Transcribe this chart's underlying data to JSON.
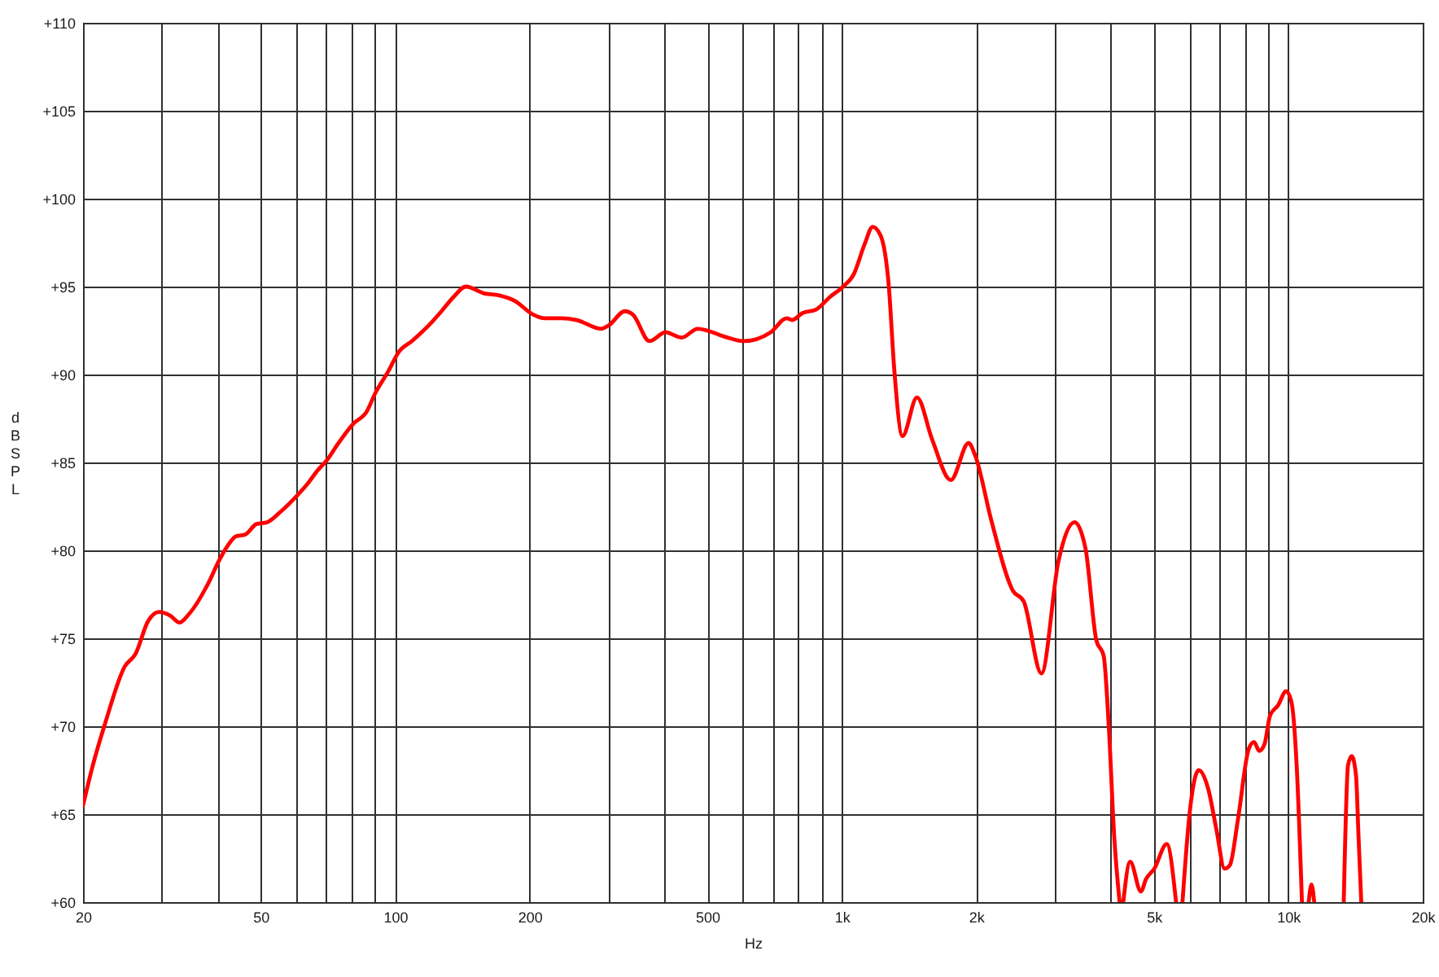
{
  "chart_data": {
    "type": "line",
    "xlabel": "Hz",
    "ylabel": "dB SPL",
    "log": "x",
    "grid": true,
    "line_style": "solid",
    "xlim": [
      20,
      20000
    ],
    "ylim": [
      60,
      110
    ],
    "xticks": [
      20,
      {
        "value": 30,
        "label": null
      },
      {
        "value": 40,
        "label": null
      },
      50,
      {
        "value": 60,
        "label": null
      },
      {
        "value": 70,
        "label": null
      },
      {
        "value": 80,
        "label": null
      },
      {
        "value": 90,
        "label": null
      },
      100,
      200,
      {
        "value": 300,
        "label": null
      },
      {
        "value": 400,
        "label": null
      },
      500,
      {
        "value": 600,
        "label": null
      },
      {
        "value": 700,
        "label": null
      },
      {
        "value": 800,
        "label": null
      },
      {
        "value": 900,
        "label": null
      },
      {
        "value": 1000,
        "label": "1k"
      },
      {
        "value": 2000,
        "label": "2k"
      },
      {
        "value": 3000,
        "label": null
      },
      {
        "value": 4000,
        "label": null
      },
      {
        "value": 5000,
        "label": "5k"
      },
      {
        "value": 6000,
        "label": null
      },
      {
        "value": 7000,
        "label": null
      },
      {
        "value": 8000,
        "label": null
      },
      {
        "value": 9000,
        "label": null
      },
      {
        "value": 10000,
        "label": "10k"
      },
      {
        "value": 20000,
        "label": "20k"
      }
    ],
    "yticks": [
      {
        "value": 60,
        "label": "+60"
      },
      {
        "value": 65,
        "label": "+65"
      },
      {
        "value": 70,
        "label": "+70"
      },
      {
        "value": 75,
        "label": "+75"
      },
      {
        "value": 80,
        "label": "+80"
      },
      {
        "value": 85,
        "label": "+85"
      },
      {
        "value": 90,
        "label": "+90"
      },
      {
        "value": 95,
        "label": "+95"
      },
      {
        "value": 100,
        "label": "+100"
      },
      {
        "value": 105,
        "label": "+105"
      },
      {
        "value": 110,
        "label": "+110"
      }
    ],
    "x": [
      20,
      21,
      22.5,
      24.8,
      26.2,
      28.0,
      29.6,
      31.3,
      32.9,
      34.6,
      38.1,
      40.3,
      42.0,
      44.0,
      46.2,
      48.9,
      51.7,
      55.4,
      60.2,
      63.7,
      67.3,
      70.2,
      74.2,
      80.6,
      86.4,
      90.1,
      96.6,
      102,
      109,
      120,
      127,
      135,
      144,
      159,
      171,
      185,
      204,
      216,
      235,
      255,
      289,
      301,
      327,
      341,
      371,
      403,
      438,
      476,
      555,
      603,
      693,
      753,
      774,
      818,
      877,
      940,
      1007,
      1064,
      1125,
      1173,
      1222,
      1275,
      1311,
      1368,
      1474,
      1594,
      1755,
      1923,
      1990,
      2163,
      2418,
      2556,
      2800,
      3058,
      3323,
      3515,
      3716,
      3860,
      3963,
      4074,
      4190,
      4230,
      4270,
      4426,
      4677,
      4800,
      5012,
      5344,
      5606,
      5700,
      5795,
      6009,
      6300,
      6623,
      6906,
      7200,
      7400,
      7714,
      8153,
      8380,
      8611,
      8850,
      9100,
      9490,
      9890,
      10160,
      10440,
      10730,
      10920,
      11110,
      11270,
      11430,
      12300,
      13310,
      13610,
      13870,
      14180,
      14360,
      14570
    ],
    "series": [
      {
        "color": "#ff0000",
        "values": [
          65.5,
          67.7,
          70.3,
          73.4,
          74.1,
          76.0,
          76.5,
          76.3,
          75.9,
          76.4,
          78.1,
          79.4,
          80.2,
          80.8,
          80.9,
          81.5,
          81.6,
          82.2,
          83.1,
          83.8,
          84.6,
          85.1,
          86.0,
          87.2,
          87.9,
          88.9,
          90.2,
          91.3,
          91.9,
          92.9,
          93.6,
          94.4,
          95.0,
          94.6,
          94.5,
          94.2,
          93.4,
          93.2,
          93.2,
          93.1,
          92.6,
          92.8,
          93.6,
          93.4,
          91.9,
          92.4,
          92.1,
          92.6,
          92.1,
          91.9,
          92.4,
          93.2,
          93.1,
          93.5,
          93.7,
          94.4,
          95.0,
          95.7,
          97.4,
          98.4,
          97.9,
          95.0,
          90.3,
          86.5,
          88.7,
          86.3,
          84.0,
          86.1,
          85.4,
          81.7,
          77.7,
          77.1,
          73.0,
          79.4,
          81.6,
          80.1,
          74.9,
          74.0,
          70.0,
          63.8,
          60,
          null,
          60,
          62.3,
          60.6,
          61.3,
          61.9,
          63.3,
          60,
          null,
          60,
          65.0,
          67.5,
          66.4,
          64.1,
          61.9,
          62.1,
          64.7,
          68.7,
          69.1,
          68.6,
          69.0,
          70.6,
          71.2,
          72.0,
          71.4,
          67.8,
          60,
          null,
          60,
          61.0,
          60,
          null,
          60,
          67.8,
          68.3,
          67.2,
          63.8,
          60
        ]
      }
    ]
  }
}
